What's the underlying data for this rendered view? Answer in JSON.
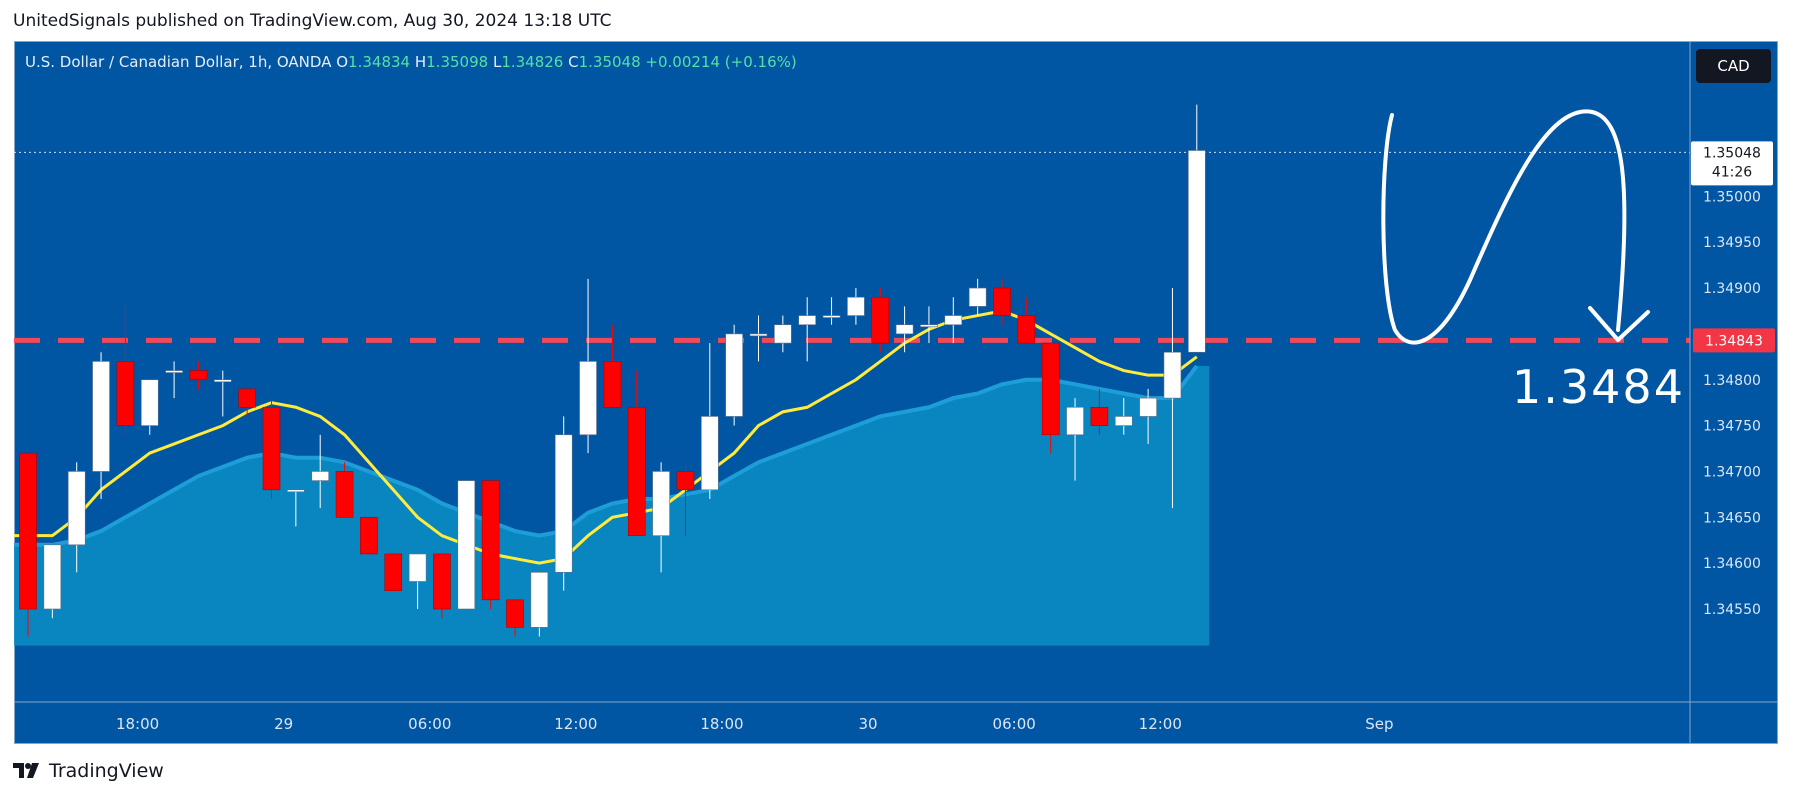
{
  "publisher_line": "UnitedSignals published on TradingView.com, Aug 30, 2024 13:18 UTC",
  "footer_brand": "TradingView",
  "legend": {
    "symbol": "U.S. Dollar / Canadian Dollar, 1h, OANDA",
    "o_label": "O",
    "o": "1.34834",
    "h_label": "H",
    "h": "1.35098",
    "l_label": "L",
    "l": "1.34826",
    "c_label": "C",
    "c": "1.35048",
    "change": "+0.00214 (+0.16%)"
  },
  "currency_button": "CAD",
  "colors": {
    "background": "#0056a3",
    "bull": "#ffffff",
    "bear": "#ff0000",
    "ma_fast": "#ffeb3b",
    "ma_slow": "#1e9ed8",
    "area": "#0a8dc4",
    "level": "#f04a5a",
    "annotation": "#ffffff"
  },
  "chart_data": {
    "type": "candlestick",
    "symbol": "USDCAD",
    "timeframe": "1h",
    "ylim": [
      1.3451,
      1.3513
    ],
    "y_ticks": [
      1.3455,
      1.346,
      1.3465,
      1.347,
      1.3475,
      1.348,
      1.3485,
      1.349,
      1.3495,
      1.35
    ],
    "y_tick_labels": [
      "1.34550",
      "1.34600",
      "1.34650",
      "1.34700",
      "1.34750",
      "1.34800",
      "1.34850",
      "1.34900",
      "1.34950",
      "1.35000"
    ],
    "x_labels": [
      {
        "label": "18:00",
        "index": 4.5
      },
      {
        "label": "29",
        "index": 10.5
      },
      {
        "label": "06:00",
        "index": 16.5
      },
      {
        "label": "12:00",
        "index": 22.5
      },
      {
        "label": "18:00",
        "index": 28.5
      },
      {
        "label": "30",
        "index": 34.5
      },
      {
        "label": "06:00",
        "index": 40.5
      },
      {
        "label": "12:00",
        "index": 46.5
      },
      {
        "label": "Sep",
        "index": 55.5
      }
    ],
    "candles": [
      {
        "o": 1.3472,
        "h": 1.3472,
        "l": 1.3452,
        "c": 1.3455
      },
      {
        "o": 1.3455,
        "h": 1.3462,
        "l": 1.3454,
        "c": 1.3462
      },
      {
        "o": 1.3462,
        "h": 1.3471,
        "l": 1.3459,
        "c": 1.347
      },
      {
        "o": 1.347,
        "h": 1.3483,
        "l": 1.3467,
        "c": 1.3482
      },
      {
        "o": 1.3482,
        "h": 1.3488,
        "l": 1.3474,
        "c": 1.3475
      },
      {
        "o": 1.3475,
        "h": 1.348,
        "l": 1.3474,
        "c": 1.348
      },
      {
        "o": 1.3481,
        "h": 1.3482,
        "l": 1.3478,
        "c": 1.3481
      },
      {
        "o": 1.3481,
        "h": 1.3482,
        "l": 1.3479,
        "c": 1.348
      },
      {
        "o": 1.348,
        "h": 1.3481,
        "l": 1.3476,
        "c": 1.348
      },
      {
        "o": 1.3479,
        "h": 1.3479,
        "l": 1.3476,
        "c": 1.3477
      },
      {
        "o": 1.3477,
        "h": 1.3478,
        "l": 1.3467,
        "c": 1.3468
      },
      {
        "o": 1.3468,
        "h": 1.3468,
        "l": 1.3464,
        "c": 1.3468
      },
      {
        "o": 1.3469,
        "h": 1.3474,
        "l": 1.3466,
        "c": 1.347
      },
      {
        "o": 1.347,
        "h": 1.3471,
        "l": 1.3465,
        "c": 1.3465
      },
      {
        "o": 1.3465,
        "h": 1.3465,
        "l": 1.3461,
        "c": 1.3461
      },
      {
        "o": 1.3461,
        "h": 1.3461,
        "l": 1.3457,
        "c": 1.3457
      },
      {
        "o": 1.3458,
        "h": 1.3461,
        "l": 1.3455,
        "c": 1.3461
      },
      {
        "o": 1.3461,
        "h": 1.3461,
        "l": 1.3454,
        "c": 1.3455
      },
      {
        "o": 1.3455,
        "h": 1.3469,
        "l": 1.3455,
        "c": 1.3469
      },
      {
        "o": 1.3469,
        "h": 1.3469,
        "l": 1.3455,
        "c": 1.3456
      },
      {
        "o": 1.3456,
        "h": 1.3456,
        "l": 1.3452,
        "c": 1.3453
      },
      {
        "o": 1.3453,
        "h": 1.3459,
        "l": 1.3452,
        "c": 1.3459
      },
      {
        "o": 1.3459,
        "h": 1.3476,
        "l": 1.3457,
        "c": 1.3474
      },
      {
        "o": 1.3474,
        "h": 1.3491,
        "l": 1.3472,
        "c": 1.3482
      },
      {
        "o": 1.3482,
        "h": 1.3486,
        "l": 1.3477,
        "c": 1.3477
      },
      {
        "o": 1.3477,
        "h": 1.3481,
        "l": 1.3463,
        "c": 1.3463
      },
      {
        "o": 1.3463,
        "h": 1.3471,
        "l": 1.3459,
        "c": 1.347
      },
      {
        "o": 1.347,
        "h": 1.3471,
        "l": 1.3463,
        "c": 1.3468
      },
      {
        "o": 1.3468,
        "h": 1.3484,
        "l": 1.3467,
        "c": 1.3476
      },
      {
        "o": 1.3476,
        "h": 1.3486,
        "l": 1.3475,
        "c": 1.3485
      },
      {
        "o": 1.3485,
        "h": 1.3487,
        "l": 1.3482,
        "c": 1.3485
      },
      {
        "o": 1.3484,
        "h": 1.3487,
        "l": 1.3483,
        "c": 1.3486
      },
      {
        "o": 1.3486,
        "h": 1.3489,
        "l": 1.3482,
        "c": 1.3487
      },
      {
        "o": 1.3487,
        "h": 1.3489,
        "l": 1.3486,
        "c": 1.3487
      },
      {
        "o": 1.3487,
        "h": 1.349,
        "l": 1.3486,
        "c": 1.3489
      },
      {
        "o": 1.3489,
        "h": 1.349,
        "l": 1.3483,
        "c": 1.3484
      },
      {
        "o": 1.3485,
        "h": 1.3488,
        "l": 1.3483,
        "c": 1.3486
      },
      {
        "o": 1.3486,
        "h": 1.3488,
        "l": 1.3484,
        "c": 1.3486
      },
      {
        "o": 1.3486,
        "h": 1.3489,
        "l": 1.3484,
        "c": 1.3487
      },
      {
        "o": 1.3488,
        "h": 1.3491,
        "l": 1.3487,
        "c": 1.349
      },
      {
        "o": 1.349,
        "h": 1.3491,
        "l": 1.3486,
        "c": 1.3487
      },
      {
        "o": 1.3487,
        "h": 1.3489,
        "l": 1.3484,
        "c": 1.3484
      },
      {
        "o": 1.3484,
        "h": 1.3484,
        "l": 1.3472,
        "c": 1.3474
      },
      {
        "o": 1.3474,
        "h": 1.3478,
        "l": 1.3469,
        "c": 1.3477
      },
      {
        "o": 1.3477,
        "h": 1.3479,
        "l": 1.3474,
        "c": 1.3475
      },
      {
        "o": 1.3475,
        "h": 1.3478,
        "l": 1.3474,
        "c": 1.3476
      },
      {
        "o": 1.3476,
        "h": 1.3479,
        "l": 1.3473,
        "c": 1.3478
      },
      {
        "o": 1.3478,
        "h": 1.349,
        "l": 1.3466,
        "c": 1.3483
      },
      {
        "o": 1.3483,
        "h": 1.351,
        "l": 1.3483,
        "c": 1.3505
      }
    ],
    "ma_fast": [
      1.3463,
      1.3463,
      1.3465,
      1.3468,
      1.347,
      1.3472,
      1.3473,
      1.3474,
      1.3475,
      1.34765,
      1.34775,
      1.3477,
      1.3476,
      1.3474,
      1.3471,
      1.3468,
      1.3465,
      1.3463,
      1.3462,
      1.3461,
      1.34605,
      1.346,
      1.34605,
      1.3463,
      1.3465,
      1.34655,
      1.3466,
      1.3468,
      1.347,
      1.3472,
      1.3475,
      1.34765,
      1.3477,
      1.34785,
      1.348,
      1.3482,
      1.3484,
      1.34855,
      1.34865,
      1.3487,
      1.34875,
      1.34865,
      1.3485,
      1.34835,
      1.3482,
      1.3481,
      1.34805,
      1.34805,
      1.34825
    ],
    "ma_slow": [
      1.3462,
      1.3462,
      1.34625,
      1.34635,
      1.3465,
      1.34665,
      1.3468,
      1.34695,
      1.34705,
      1.34715,
      1.3472,
      1.34715,
      1.34715,
      1.3471,
      1.347,
      1.3469,
      1.3468,
      1.34665,
      1.34655,
      1.34645,
      1.34635,
      1.3463,
      1.34635,
      1.34655,
      1.34665,
      1.3467,
      1.3467,
      1.34675,
      1.3468,
      1.34695,
      1.3471,
      1.3472,
      1.3473,
      1.3474,
      1.3475,
      1.3476,
      1.34765,
      1.3477,
      1.3478,
      1.34785,
      1.34795,
      1.348,
      1.348,
      1.34795,
      1.3479,
      1.34785,
      1.3478,
      1.3478,
      1.34815
    ],
    "horizontal_level": {
      "value": 1.34843,
      "label": "1.34843",
      "style": "dashed"
    },
    "last_price": {
      "value": 1.35048,
      "label": "1.35048",
      "countdown": "41:26"
    },
    "annotation": {
      "text": "1.3484",
      "target": 1.34843
    }
  }
}
